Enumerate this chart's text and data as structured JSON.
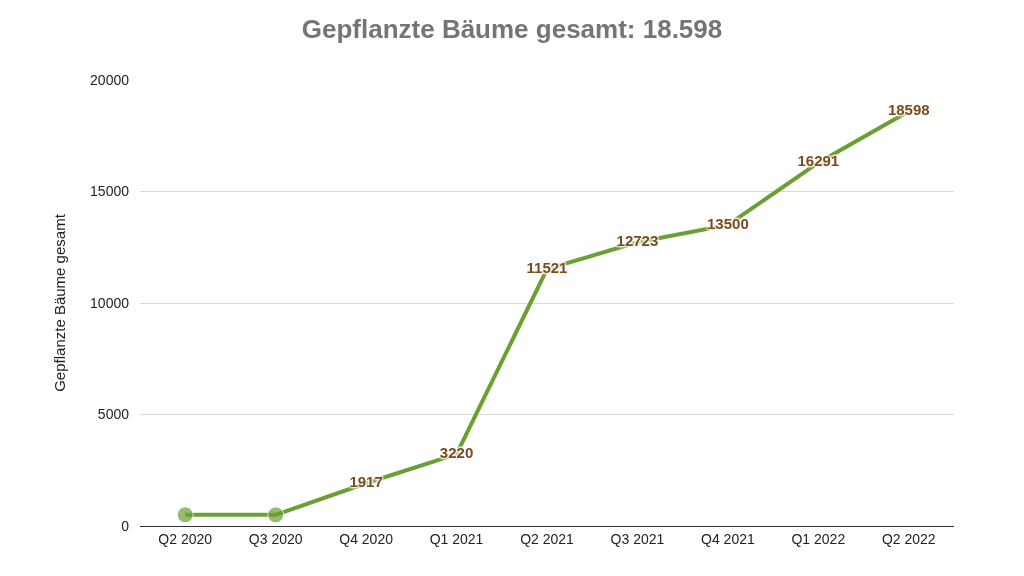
{
  "chart_data": {
    "type": "line",
    "title": "Gepflanzte Bäume gesamt: 18.598",
    "ylabel": "Gepflanzte Bäume gesamt",
    "categories": [
      "Q2 2020",
      "Q3 2020",
      "Q4 2020",
      "Q1 2021",
      "Q2 2021",
      "Q3 2021",
      "Q4 2021",
      "Q1 2022",
      "Q2 2022"
    ],
    "series": [
      {
        "color": "#6a9f32",
        "values": [
          500,
          500,
          1917,
          3220,
          11521,
          12723,
          13500,
          16291,
          18598
        ],
        "value_labels": [
          null,
          null,
          "1917",
          "3220",
          "11521",
          "12723",
          "13500",
          "16291",
          "18598"
        ]
      }
    ],
    "ylim": [
      0,
      20000
    ],
    "yticks": [
      0,
      5000,
      10000,
      15000,
      20000
    ],
    "grid": "y",
    "marker": "circle",
    "line_style": "solid"
  }
}
